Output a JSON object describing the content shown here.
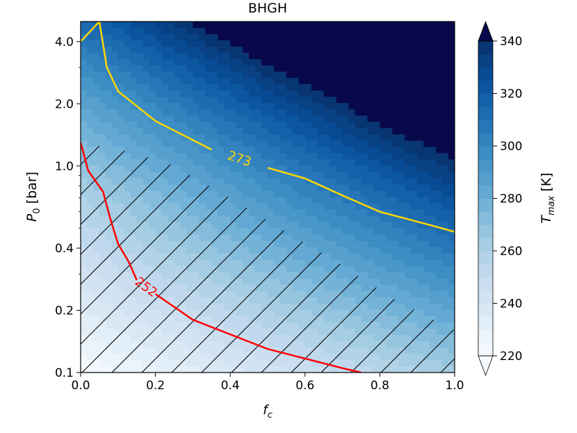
{
  "chart_data": {
    "type": "heatmap",
    "title": "BHGH",
    "xlabel_main": "f",
    "xlabel_sub": "c",
    "ylabel_main": "P",
    "ylabel_sub": "0",
    "ylabel_unit": " [bar]",
    "cbar_label_main": "T",
    "cbar_label_sub": "max",
    "cbar_label_unit": " [K]",
    "xlim": [
      0.0,
      1.0
    ],
    "ylim": [
      0.1,
      5.0
    ],
    "yscale": "log",
    "x_ticks": [
      0.0,
      0.2,
      0.4,
      0.6,
      0.8,
      1.0
    ],
    "x_tick_labels": [
      "0.0",
      "0.2",
      "0.4",
      "0.6",
      "0.8",
      "1.0"
    ],
    "y_ticks": [
      0.1,
      0.2,
      0.4,
      1.0,
      2.0,
      4.0
    ],
    "y_tick_labels": [
      "0.1",
      "0.2",
      "0.4",
      "1.0",
      "2.0",
      "4.0"
    ],
    "colorbar": {
      "min": 220,
      "max": 340,
      "step": 5,
      "ticks": [
        220,
        240,
        260,
        280,
        300,
        320,
        340
      ],
      "tick_labels": [
        "220",
        "240",
        "260",
        "280",
        "300",
        "320",
        "340"
      ],
      "extend": "both",
      "colormap": "Blues"
    },
    "contour_lines": [
      {
        "level": 273,
        "label": "273",
        "color": "#ffd700",
        "x": [
          0.0,
          0.05,
          0.07,
          0.1,
          0.2,
          0.35,
          0.5,
          0.6,
          0.7,
          0.8,
          0.93,
          1.0
        ],
        "y": [
          4.0,
          5.0,
          3.0,
          2.3,
          1.65,
          1.2,
          0.98,
          0.87,
          0.72,
          0.6,
          0.52,
          0.48
        ]
      },
      {
        "level": 252,
        "label": "252",
        "color": "#ff0000",
        "x": [
          0.0,
          0.02,
          0.06,
          0.08,
          0.1,
          0.13,
          0.15,
          0.2,
          0.3,
          0.5,
          0.7,
          0.75
        ],
        "y": [
          1.3,
          0.95,
          0.75,
          0.55,
          0.42,
          0.34,
          0.28,
          0.24,
          0.18,
          0.13,
          0.105,
          0.1
        ]
      }
    ],
    "hatch_boundary": {
      "x": [
        0.0,
        0.15,
        0.25,
        0.4,
        0.55,
        0.7,
        0.85,
        1.0
      ],
      "y": [
        1.3,
        1.15,
        1.0,
        0.7,
        0.48,
        0.33,
        0.22,
        0.16
      ]
    }
  }
}
